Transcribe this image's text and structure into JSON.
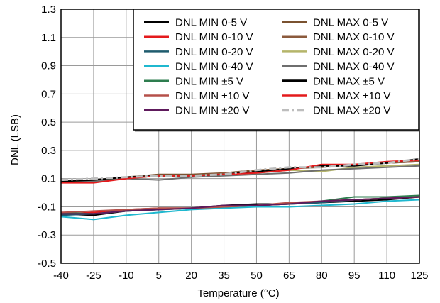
{
  "chart_data": {
    "type": "line",
    "xlabel": "Temperature (°C)",
    "ylabel": "DNL (LSB)",
    "xlim": [
      -40,
      125
    ],
    "ylim": [
      -0.5,
      1.3
    ],
    "x_ticks": [
      -40,
      -25,
      -10,
      5,
      20,
      35,
      50,
      65,
      80,
      95,
      110,
      125
    ],
    "y_ticks": [
      1.3,
      1.1,
      0.9,
      0.7,
      0.5,
      0.3,
      0.1,
      -0.1,
      -0.3,
      -0.5
    ],
    "grid": true,
    "legend_position": "top-right",
    "x": [
      -40,
      -25,
      -10,
      5,
      20,
      35,
      50,
      65,
      80,
      95,
      110,
      125
    ],
    "series": [
      {
        "name": "DNL MIN 0-5 V",
        "color": "#000000",
        "dash": "solid",
        "values": [
          -0.15,
          -0.16,
          -0.13,
          -0.11,
          -0.11,
          -0.09,
          -0.08,
          -0.08,
          -0.07,
          -0.06,
          -0.05,
          -0.03
        ]
      },
      {
        "name": "DNL MIN 0-10 V",
        "color": "#e41a1c",
        "dash": "solid",
        "values": [
          -0.15,
          -0.14,
          -0.12,
          -0.11,
          -0.11,
          -0.1,
          -0.09,
          -0.08,
          -0.06,
          -0.05,
          -0.04,
          -0.03
        ]
      },
      {
        "name": "DNL MIN 0-20 V",
        "color": "#1f5c6e",
        "dash": "solid",
        "values": [
          -0.16,
          -0.15,
          -0.13,
          -0.12,
          -0.11,
          -0.1,
          -0.09,
          -0.08,
          -0.07,
          -0.05,
          -0.04,
          -0.03
        ]
      },
      {
        "name": "DNL MIN 0-40 V",
        "color": "#1fb8cf",
        "dash": "solid",
        "values": [
          -0.17,
          -0.19,
          -0.16,
          -0.14,
          -0.12,
          -0.11,
          -0.1,
          -0.1,
          -0.09,
          -0.08,
          -0.06,
          -0.05
        ]
      },
      {
        "name": "DNL MIN ±5 V",
        "color": "#2e7d4f",
        "dash": "solid",
        "values": [
          -0.14,
          -0.15,
          -0.13,
          -0.12,
          -0.11,
          -0.1,
          -0.09,
          -0.08,
          -0.06,
          -0.03,
          -0.03,
          -0.02
        ]
      },
      {
        "name": "DNL MIN ±10 V",
        "color": "#b5504a",
        "dash": "solid",
        "values": [
          -0.14,
          -0.13,
          -0.12,
          -0.11,
          -0.11,
          -0.1,
          -0.09,
          -0.07,
          -0.06,
          -0.05,
          -0.04,
          -0.03
        ]
      },
      {
        "name": "DNL MIN ±20 V",
        "color": "#5e1a5c",
        "dash": "solid",
        "values": [
          -0.15,
          -0.15,
          -0.13,
          -0.12,
          -0.11,
          -0.09,
          -0.09,
          -0.08,
          -0.06,
          -0.05,
          -0.04,
          -0.03
        ]
      },
      {
        "name": "DNL MAX 0-5 V",
        "color": "#7a5230",
        "dash": "solid",
        "values": [
          0.08,
          0.09,
          0.11,
          0.13,
          0.13,
          0.14,
          0.16,
          0.17,
          0.19,
          0.2,
          0.21,
          0.22
        ]
      },
      {
        "name": "DNL MAX 0-10 V",
        "color": "#8b5a3c",
        "dash": "solid",
        "values": [
          0.07,
          0.09,
          0.1,
          0.12,
          0.12,
          0.14,
          0.15,
          0.17,
          0.18,
          0.2,
          0.21,
          0.22
        ]
      },
      {
        "name": "DNL MAX 0-20 V",
        "color": "#b5b56a",
        "dash": "solid",
        "values": [
          0.08,
          0.09,
          0.1,
          0.12,
          0.11,
          0.13,
          0.14,
          0.16,
          0.15,
          0.18,
          0.19,
          0.2
        ]
      },
      {
        "name": "DNL MAX 0-40 V",
        "color": "#6e6e6e",
        "dash": "solid",
        "values": [
          0.09,
          0.08,
          0.1,
          0.09,
          0.11,
          0.12,
          0.13,
          0.14,
          0.16,
          0.17,
          0.18,
          0.19
        ]
      },
      {
        "name": "DNL MAX ±5 V",
        "color": "#000000",
        "dash": "solid",
        "values": [
          0.08,
          0.09,
          0.11,
          0.12,
          0.12,
          0.13,
          0.15,
          0.17,
          0.19,
          0.19,
          0.21,
          0.24
        ]
      },
      {
        "name": "DNL MAX ±10 V",
        "color": "#e41a1c",
        "dash": "solid",
        "values": [
          0.07,
          0.07,
          0.1,
          0.12,
          0.12,
          0.13,
          0.14,
          0.16,
          0.2,
          0.2,
          0.22,
          0.23
        ]
      },
      {
        "name": "DNL MAX ±20 V",
        "color": "#bdbdbd",
        "dash": "dashdot",
        "values": [
          0.09,
          0.1,
          0.11,
          0.12,
          0.12,
          0.13,
          0.16,
          0.18,
          0.18,
          0.2,
          0.21,
          0.24
        ]
      }
    ]
  }
}
